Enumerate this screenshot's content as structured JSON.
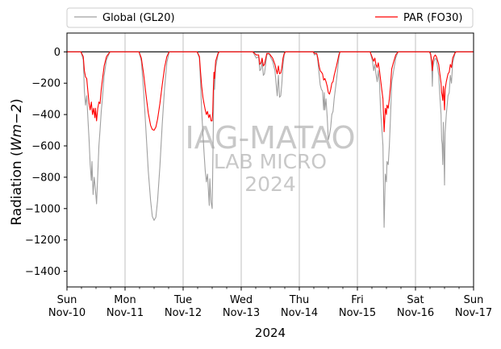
{
  "chart_data": {
    "type": "line",
    "ylabel_prefix": "Radiation (",
    "ylabel_math": "Wm−2",
    "ylabel_suffix": ")",
    "xlabel": "2024",
    "ylim": [
      -1500,
      120
    ],
    "yticks": [
      0,
      -200,
      -400,
      -600,
      -800,
      -1000,
      -1200,
      -1400
    ],
    "ytick_labels": [
      "0",
      "−200",
      "−400",
      "−600",
      "−800",
      "−1000",
      "−1200",
      "−1400"
    ],
    "xlim": [
      0,
      7
    ],
    "xticks": [
      {
        "x": 0,
        "day": "Sun",
        "date": "Nov-10"
      },
      {
        "x": 1,
        "day": "Mon",
        "date": "Nov-11"
      },
      {
        "x": 2,
        "day": "Tue",
        "date": "Nov-12"
      },
      {
        "x": 3,
        "day": "Wed",
        "date": "Nov-13"
      },
      {
        "x": 4,
        "day": "Thu",
        "date": "Nov-14"
      },
      {
        "x": 5,
        "day": "Fri",
        "date": "Nov-15"
      },
      {
        "x": 6,
        "day": "Sat",
        "date": "Nov-16"
      },
      {
        "x": 7,
        "day": "Sun",
        "date": "Nov-17"
      }
    ],
    "x_unit": "days from Sun Nov-10 00:00",
    "grid": "vertical at day boundaries",
    "zero_line": true,
    "legend_position": "top, above plot",
    "watermark": [
      "IAG-MATAO",
      "LAB MICRO",
      "2024"
    ],
    "series": [
      {
        "name": "Global (GL20)",
        "color": "#a0a0a0",
        "points": [
          [
            0.0,
            0
          ],
          [
            0.24,
            0
          ],
          [
            0.28,
            -50
          ],
          [
            0.3,
            -250
          ],
          [
            0.32,
            -340
          ],
          [
            0.34,
            -280
          ],
          [
            0.36,
            -420
          ],
          [
            0.38,
            -560
          ],
          [
            0.4,
            -720
          ],
          [
            0.42,
            -820
          ],
          [
            0.43,
            -700
          ],
          [
            0.45,
            -910
          ],
          [
            0.47,
            -800
          ],
          [
            0.49,
            -880
          ],
          [
            0.51,
            -970
          ],
          [
            0.53,
            -780
          ],
          [
            0.55,
            -600
          ],
          [
            0.57,
            -500
          ],
          [
            0.59,
            -380
          ],
          [
            0.61,
            -300
          ],
          [
            0.64,
            -150
          ],
          [
            0.68,
            -50
          ],
          [
            0.74,
            0
          ],
          [
            1.24,
            0
          ],
          [
            1.28,
            -60
          ],
          [
            1.32,
            -250
          ],
          [
            1.36,
            -500
          ],
          [
            1.4,
            -760
          ],
          [
            1.44,
            -950
          ],
          [
            1.47,
            -1050
          ],
          [
            1.5,
            -1075
          ],
          [
            1.53,
            -1055
          ],
          [
            1.56,
            -950
          ],
          [
            1.6,
            -730
          ],
          [
            1.64,
            -460
          ],
          [
            1.68,
            -230
          ],
          [
            1.72,
            -70
          ],
          [
            1.76,
            0
          ],
          [
            2.24,
            0
          ],
          [
            2.28,
            -40
          ],
          [
            2.3,
            -200
          ],
          [
            2.32,
            -380
          ],
          [
            2.34,
            -520
          ],
          [
            2.36,
            -640
          ],
          [
            2.38,
            -760
          ],
          [
            2.4,
            -830
          ],
          [
            2.42,
            -780
          ],
          [
            2.44,
            -920
          ],
          [
            2.45,
            -980
          ],
          [
            2.46,
            -810
          ],
          [
            2.48,
            -960
          ],
          [
            2.5,
            -1000
          ],
          [
            2.51,
            -750
          ],
          [
            2.52,
            -480
          ],
          [
            2.53,
            -160
          ],
          [
            2.54,
            -240
          ],
          [
            2.56,
            -100
          ],
          [
            2.6,
            -20
          ],
          [
            2.62,
            0
          ],
          [
            3.2,
            0
          ],
          [
            3.26,
            -40
          ],
          [
            3.3,
            -30
          ],
          [
            3.32,
            -120
          ],
          [
            3.34,
            -110
          ],
          [
            3.36,
            -60
          ],
          [
            3.38,
            -150
          ],
          [
            3.4,
            -140
          ],
          [
            3.44,
            -20
          ],
          [
            3.48,
            -10
          ],
          [
            3.5,
            -30
          ],
          [
            3.54,
            -60
          ],
          [
            3.58,
            -120
          ],
          [
            3.6,
            -200
          ],
          [
            3.62,
            -280
          ],
          [
            3.64,
            -150
          ],
          [
            3.66,
            -290
          ],
          [
            3.68,
            -280
          ],
          [
            3.7,
            -200
          ],
          [
            3.72,
            -80
          ],
          [
            3.74,
            -20
          ],
          [
            3.76,
            0
          ],
          [
            4.24,
            0
          ],
          [
            4.26,
            -20
          ],
          [
            4.3,
            -10
          ],
          [
            4.32,
            -60
          ],
          [
            4.34,
            -140
          ],
          [
            4.36,
            -210
          ],
          [
            4.38,
            -240
          ],
          [
            4.4,
            -250
          ],
          [
            4.42,
            -370
          ],
          [
            4.43,
            -260
          ],
          [
            4.44,
            -370
          ],
          [
            4.46,
            -300
          ],
          [
            4.48,
            -420
          ],
          [
            4.5,
            -560
          ],
          [
            4.52,
            -530
          ],
          [
            4.54,
            -480
          ],
          [
            4.56,
            -400
          ],
          [
            4.58,
            -380
          ],
          [
            4.6,
            -300
          ],
          [
            4.64,
            -180
          ],
          [
            4.68,
            -40
          ],
          [
            4.7,
            0
          ],
          [
            5.22,
            0
          ],
          [
            5.26,
            -60
          ],
          [
            5.28,
            -120
          ],
          [
            5.3,
            -80
          ],
          [
            5.32,
            -140
          ],
          [
            5.34,
            -190
          ],
          [
            5.36,
            -120
          ],
          [
            5.38,
            -200
          ],
          [
            5.4,
            -380
          ],
          [
            5.42,
            -480
          ],
          [
            5.44,
            -600
          ],
          [
            5.46,
            -1120
          ],
          [
            5.48,
            -780
          ],
          [
            5.5,
            -830
          ],
          [
            5.51,
            -700
          ],
          [
            5.53,
            -720
          ],
          [
            5.55,
            -600
          ],
          [
            5.57,
            -420
          ],
          [
            5.59,
            -200
          ],
          [
            5.62,
            -130
          ],
          [
            5.66,
            -40
          ],
          [
            5.7,
            0
          ],
          [
            6.24,
            0
          ],
          [
            6.26,
            -20
          ],
          [
            6.28,
            -100
          ],
          [
            6.29,
            -220
          ],
          [
            6.3,
            -100
          ],
          [
            6.32,
            -60
          ],
          [
            6.34,
            -40
          ],
          [
            6.36,
            -50
          ],
          [
            6.4,
            -150
          ],
          [
            6.42,
            -280
          ],
          [
            6.44,
            -400
          ],
          [
            6.45,
            -560
          ],
          [
            6.46,
            -590
          ],
          [
            6.47,
            -720
          ],
          [
            6.48,
            -450
          ],
          [
            6.5,
            -850
          ],
          [
            6.51,
            -520
          ],
          [
            6.53,
            -400
          ],
          [
            6.56,
            -280
          ],
          [
            6.58,
            -260
          ],
          [
            6.6,
            -150
          ],
          [
            6.62,
            -200
          ],
          [
            6.64,
            -70
          ],
          [
            6.68,
            -10
          ],
          [
            6.7,
            0
          ],
          [
            7.0,
            0
          ]
        ]
      },
      {
        "name": "PAR (FO30)",
        "color": "#ff0000",
        "points": [
          [
            0.0,
            0
          ],
          [
            0.24,
            0
          ],
          [
            0.28,
            -30
          ],
          [
            0.3,
            -120
          ],
          [
            0.32,
            -160
          ],
          [
            0.34,
            -170
          ],
          [
            0.36,
            -250
          ],
          [
            0.38,
            -330
          ],
          [
            0.4,
            -370
          ],
          [
            0.42,
            -320
          ],
          [
            0.44,
            -400
          ],
          [
            0.46,
            -360
          ],
          [
            0.48,
            -420
          ],
          [
            0.49,
            -360
          ],
          [
            0.51,
            -440
          ],
          [
            0.53,
            -360
          ],
          [
            0.55,
            -320
          ],
          [
            0.57,
            -330
          ],
          [
            0.59,
            -240
          ],
          [
            0.61,
            -180
          ],
          [
            0.64,
            -90
          ],
          [
            0.68,
            -30
          ],
          [
            0.74,
            0
          ],
          [
            1.24,
            0
          ],
          [
            1.28,
            -40
          ],
          [
            1.32,
            -140
          ],
          [
            1.36,
            -270
          ],
          [
            1.4,
            -390
          ],
          [
            1.44,
            -470
          ],
          [
            1.47,
            -495
          ],
          [
            1.5,
            -500
          ],
          [
            1.53,
            -480
          ],
          [
            1.56,
            -430
          ],
          [
            1.6,
            -330
          ],
          [
            1.64,
            -210
          ],
          [
            1.68,
            -100
          ],
          [
            1.72,
            -30
          ],
          [
            1.76,
            0
          ],
          [
            2.24,
            0
          ],
          [
            2.28,
            -30
          ],
          [
            2.3,
            -130
          ],
          [
            2.32,
            -220
          ],
          [
            2.34,
            -290
          ],
          [
            2.36,
            -330
          ],
          [
            2.38,
            -370
          ],
          [
            2.4,
            -400
          ],
          [
            2.42,
            -380
          ],
          [
            2.44,
            -420
          ],
          [
            2.46,
            -400
          ],
          [
            2.48,
            -440
          ],
          [
            2.5,
            -440
          ],
          [
            2.51,
            -380
          ],
          [
            2.52,
            -250
          ],
          [
            2.53,
            -130
          ],
          [
            2.54,
            -170
          ],
          [
            2.56,
            -60
          ],
          [
            2.6,
            -10
          ],
          [
            2.62,
            0
          ],
          [
            3.2,
            0
          ],
          [
            3.26,
            -20
          ],
          [
            3.3,
            -20
          ],
          [
            3.32,
            -80
          ],
          [
            3.34,
            -70
          ],
          [
            3.36,
            -40
          ],
          [
            3.38,
            -90
          ],
          [
            3.4,
            -80
          ],
          [
            3.44,
            -10
          ],
          [
            3.48,
            -10
          ],
          [
            3.5,
            -20
          ],
          [
            3.54,
            -40
          ],
          [
            3.58,
            -80
          ],
          [
            3.6,
            -110
          ],
          [
            3.62,
            -140
          ],
          [
            3.64,
            -90
          ],
          [
            3.66,
            -140
          ],
          [
            3.68,
            -135
          ],
          [
            3.7,
            -100
          ],
          [
            3.72,
            -40
          ],
          [
            3.74,
            -10
          ],
          [
            3.76,
            0
          ],
          [
            4.24,
            0
          ],
          [
            4.26,
            -10
          ],
          [
            4.3,
            -10
          ],
          [
            4.32,
            -40
          ],
          [
            4.34,
            -90
          ],
          [
            4.36,
            -120
          ],
          [
            4.38,
            -130
          ],
          [
            4.4,
            -140
          ],
          [
            4.42,
            -180
          ],
          [
            4.44,
            -170
          ],
          [
            4.46,
            -190
          ],
          [
            4.48,
            -220
          ],
          [
            4.5,
            -260
          ],
          [
            4.52,
            -270
          ],
          [
            4.54,
            -240
          ],
          [
            4.56,
            -200
          ],
          [
            4.58,
            -190
          ],
          [
            4.6,
            -150
          ],
          [
            4.64,
            -90
          ],
          [
            4.68,
            -20
          ],
          [
            4.7,
            0
          ],
          [
            5.22,
            0
          ],
          [
            5.26,
            -40
          ],
          [
            5.28,
            -60
          ],
          [
            5.3,
            -40
          ],
          [
            5.32,
            -80
          ],
          [
            5.34,
            -100
          ],
          [
            5.36,
            -70
          ],
          [
            5.38,
            -120
          ],
          [
            5.4,
            -180
          ],
          [
            5.42,
            -240
          ],
          [
            5.44,
            -300
          ],
          [
            5.46,
            -510
          ],
          [
            5.48,
            -360
          ],
          [
            5.5,
            -400
          ],
          [
            5.51,
            -340
          ],
          [
            5.53,
            -360
          ],
          [
            5.55,
            -300
          ],
          [
            5.57,
            -220
          ],
          [
            5.59,
            -110
          ],
          [
            5.62,
            -70
          ],
          [
            5.66,
            -20
          ],
          [
            5.7,
            0
          ],
          [
            6.24,
            0
          ],
          [
            6.26,
            -10
          ],
          [
            6.28,
            -60
          ],
          [
            6.29,
            -120
          ],
          [
            6.3,
            -60
          ],
          [
            6.32,
            -30
          ],
          [
            6.34,
            -20
          ],
          [
            6.36,
            -30
          ],
          [
            6.4,
            -80
          ],
          [
            6.42,
            -140
          ],
          [
            6.44,
            -200
          ],
          [
            6.45,
            -260
          ],
          [
            6.46,
            -280
          ],
          [
            6.47,
            -310
          ],
          [
            6.48,
            -220
          ],
          [
            6.5,
            -370
          ],
          [
            6.51,
            -240
          ],
          [
            6.53,
            -190
          ],
          [
            6.56,
            -140
          ],
          [
            6.58,
            -130
          ],
          [
            6.6,
            -80
          ],
          [
            6.62,
            -100
          ],
          [
            6.64,
            -40
          ],
          [
            6.68,
            -5
          ],
          [
            6.7,
            0
          ],
          [
            7.0,
            0
          ]
        ]
      }
    ]
  }
}
